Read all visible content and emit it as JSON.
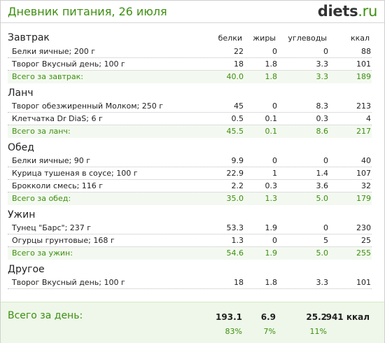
{
  "header": {
    "title": "Дневник питания, 26 июля",
    "logo_brand": "diets",
    "logo_tld": ".ru"
  },
  "columns": {
    "protein": "белки",
    "fat": "жиры",
    "carbs": "углеводы",
    "kcal": "ккал"
  },
  "meals": [
    {
      "title": "Завтрак",
      "items": [
        {
          "name": "Белки яичные; 200 г",
          "protein": "22",
          "fat": "0",
          "carbs": "0",
          "kcal": "88"
        },
        {
          "name": "Творог Вкусный день; 100 г",
          "protein": "18",
          "fat": "1.8",
          "carbs": "3.3",
          "kcal": "101"
        }
      ],
      "total": {
        "name": "Всего за завтрак:",
        "protein": "40.0",
        "fat": "1.8",
        "carbs": "3.3",
        "kcal": "189"
      }
    },
    {
      "title": "Ланч",
      "items": [
        {
          "name": "Творог обезжиренный Молком; 250 г",
          "protein": "45",
          "fat": "0",
          "carbs": "8.3",
          "kcal": "213"
        },
        {
          "name": "Клетчатка Dr DiaS; 6 г",
          "protein": "0.5",
          "fat": "0.1",
          "carbs": "0.3",
          "kcal": "4"
        }
      ],
      "total": {
        "name": "Всего за ланч:",
        "protein": "45.5",
        "fat": "0.1",
        "carbs": "8.6",
        "kcal": "217"
      }
    },
    {
      "title": "Обед",
      "items": [
        {
          "name": "Белки яичные; 90 г",
          "protein": "9.9",
          "fat": "0",
          "carbs": "0",
          "kcal": "40"
        },
        {
          "name": "Курица тушеная в соусе; 100 г",
          "protein": "22.9",
          "fat": "1",
          "carbs": "1.4",
          "kcal": "107"
        },
        {
          "name": "Брокколи смесь; 116 г",
          "protein": "2.2",
          "fat": "0.3",
          "carbs": "3.6",
          "kcal": "32"
        }
      ],
      "total": {
        "name": "Всего за обед:",
        "protein": "35.0",
        "fat": "1.3",
        "carbs": "5.0",
        "kcal": "179"
      }
    },
    {
      "title": "Ужин",
      "items": [
        {
          "name": "Тунец \"Барс\"; 237 г",
          "protein": "53.3",
          "fat": "1.9",
          "carbs": "0",
          "kcal": "230"
        },
        {
          "name": "Огурцы грунтовые; 168 г",
          "protein": "1.3",
          "fat": "0",
          "carbs": "5",
          "kcal": "25"
        }
      ],
      "total": {
        "name": "Всего за ужин:",
        "protein": "54.6",
        "fat": "1.9",
        "carbs": "5.0",
        "kcal": "255"
      }
    },
    {
      "title": "Другое",
      "items": [
        {
          "name": "Творог Вкусный день; 100 г",
          "protein": "18",
          "fat": "1.8",
          "carbs": "3.3",
          "kcal": "101"
        }
      ]
    }
  ],
  "day_total": {
    "label": "Всего за день:",
    "protein": "193.1",
    "fat": "6.9",
    "carbs": "25.2",
    "kcal": "941 ккал",
    "protein_pct": "83%",
    "fat_pct": "7%",
    "carbs_pct": "11%"
  },
  "colors": {
    "accent_green": "#3d8f0f",
    "total_row_bg": "#f3f9f0",
    "day_bg": "#eef7e9"
  }
}
